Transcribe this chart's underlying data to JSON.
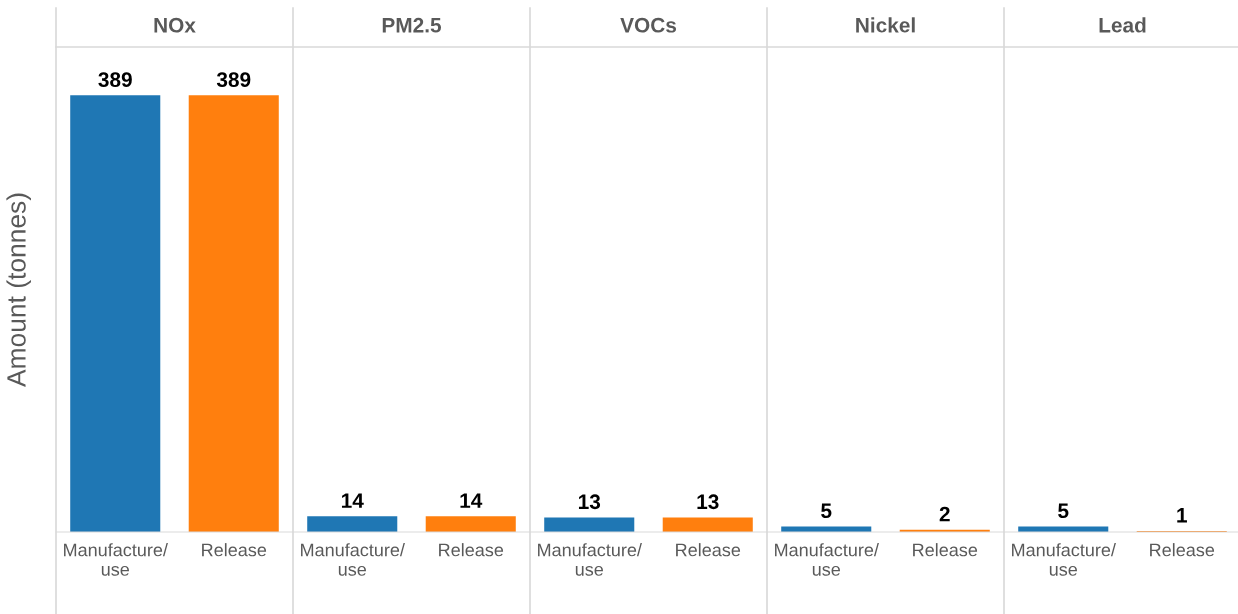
{
  "chart_data": [
    {
      "type": "bar",
      "title": "NOx",
      "ylabel": "Amount (tonnes)",
      "categories": [
        "Manufacture/\nuse",
        "Release"
      ],
      "values": [
        389,
        389
      ],
      "colors": [
        "#1f77b4",
        "#ff7f0e"
      ],
      "data_labels": true,
      "ylim": [
        0,
        432
      ],
      "tick_labels": "x"
    },
    {
      "type": "bar",
      "title": "PM2.5",
      "categories": [
        "Manufacture/\nuse",
        "Release"
      ],
      "values": [
        14,
        14
      ],
      "colors": [
        "#1f77b4",
        "#ff7f0e"
      ],
      "data_labels": true,
      "ylim": [
        0,
        432
      ],
      "tick_labels": "x"
    },
    {
      "type": "bar",
      "title": "VOCs",
      "categories": [
        "Manufacture/\nuse",
        "Release"
      ],
      "values": [
        13,
        13
      ],
      "colors": [
        "#1f77b4",
        "#ff7f0e"
      ],
      "data_labels": true,
      "ylim": [
        0,
        432
      ],
      "tick_labels": "x"
    },
    {
      "type": "bar",
      "title": "Nickel",
      "categories": [
        "Manufacture/\nuse",
        "Release"
      ],
      "values": [
        5,
        2
      ],
      "colors": [
        "#1f77b4",
        "#ff7f0e"
      ],
      "data_labels": true,
      "ylim": [
        0,
        432
      ],
      "tick_labels": "x"
    },
    {
      "type": "bar",
      "title": "Lead",
      "categories": [
        "Manufacture/\nuse",
        "Release"
      ],
      "values": [
        5,
        1
      ],
      "colors": [
        "#1f77b4",
        "#ff7f0e"
      ],
      "data_labels": true,
      "ylim": [
        0,
        432
      ],
      "tick_labels": "x"
    }
  ]
}
